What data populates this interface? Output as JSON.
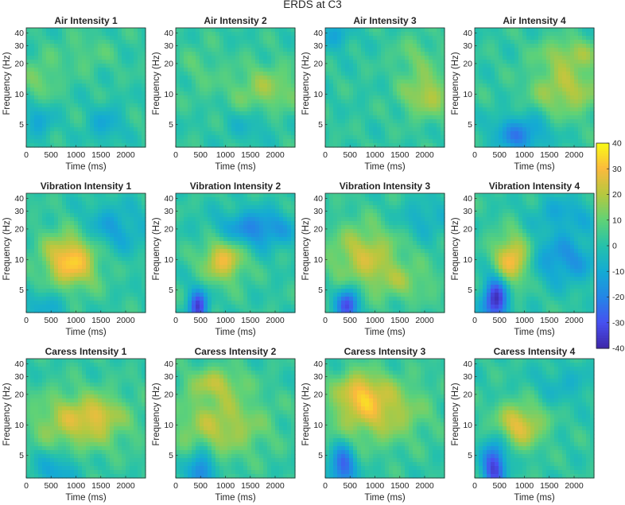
{
  "chart_data": {
    "title": "ERDS at C3",
    "type": "heatmap",
    "shared_axes": {
      "xlabel": "Time (ms)",
      "ylabel": "Frequency (Hz)",
      "xticks": [
        "0",
        "500",
        "1000",
        "1500",
        "2000"
      ],
      "xtick_values": [
        0,
        500,
        1000,
        1500,
        2000
      ],
      "xlim": [
        0,
        2400
      ],
      "yticks": [
        "5",
        "10",
        "20",
        "30",
        "40"
      ],
      "ytick_values": [
        5,
        10,
        20,
        30,
        40
      ],
      "ylim": [
        3,
        45
      ],
      "yscale": "log"
    },
    "colorbar": {
      "ticks": [
        "40",
        "30",
        "20",
        "10",
        "0",
        "-10",
        "-20",
        "-30",
        "-40"
      ],
      "tick_values": [
        40,
        30,
        20,
        10,
        0,
        -10,
        -20,
        -30,
        -40
      ],
      "range": [
        -40,
        40
      ],
      "colormap": "parula",
      "placement": "right"
    },
    "panels": [
      {
        "title": "Air Intensity 1",
        "blobs": [
          {
            "t": 300,
            "f": 14,
            "value": 10,
            "dt": 250,
            "df": 0.35
          },
          {
            "t": 250,
            "f": 5.5,
            "value": -12,
            "dt": 220,
            "df": 0.3
          },
          {
            "t": 1600,
            "f": 5,
            "value": -12,
            "dt": 250,
            "df": 0.3
          },
          {
            "t": 1200,
            "f": 25,
            "value": 6,
            "dt": 400,
            "df": 0.3
          }
        ]
      },
      {
        "title": "Air Intensity 2",
        "blobs": [
          {
            "t": 1800,
            "f": 11,
            "value": 14,
            "dt": 500,
            "df": 0.4
          },
          {
            "t": 1500,
            "f": 5,
            "value": -8,
            "dt": 350,
            "df": 0.3
          },
          {
            "t": 500,
            "f": 18,
            "value": 5,
            "dt": 300,
            "df": 0.4
          }
        ]
      },
      {
        "title": "Air Intensity 3",
        "blobs": [
          {
            "t": 2050,
            "f": 10,
            "value": 18,
            "dt": 350,
            "df": 0.35
          },
          {
            "t": 200,
            "f": 38,
            "value": -12,
            "dt": 250,
            "df": 0.25
          },
          {
            "t": 1800,
            "f": 24,
            "value": 8,
            "dt": 300,
            "df": 0.3
          }
        ]
      },
      {
        "title": "Air Intensity 4",
        "blobs": [
          {
            "t": 1850,
            "f": 11,
            "value": 18,
            "dt": 500,
            "df": 0.4
          },
          {
            "t": 1900,
            "f": 25,
            "value": 14,
            "dt": 450,
            "df": 0.25
          },
          {
            "t": 900,
            "f": 4,
            "value": -22,
            "dt": 380,
            "df": 0.3
          }
        ]
      },
      {
        "title": "Vibration Intensity 1",
        "blobs": [
          {
            "t": 900,
            "f": 10,
            "value": 32,
            "dt": 380,
            "df": 0.45
          },
          {
            "t": 1700,
            "f": 20,
            "value": -14,
            "dt": 500,
            "df": 0.4
          },
          {
            "t": 400,
            "f": 3.5,
            "value": -10,
            "dt": 350,
            "df": 0.3
          }
        ]
      },
      {
        "title": "Vibration Intensity 2",
        "blobs": [
          {
            "t": 950,
            "f": 10,
            "value": 26,
            "dt": 300,
            "df": 0.35
          },
          {
            "t": 1600,
            "f": 20,
            "value": -22,
            "dt": 550,
            "df": 0.3
          },
          {
            "t": 450,
            "f": 3.4,
            "value": -35,
            "dt": 140,
            "df": 0.3
          }
        ]
      },
      {
        "title": "Vibration Intensity 3",
        "blobs": [
          {
            "t": 800,
            "f": 11,
            "value": 20,
            "dt": 500,
            "df": 0.5
          },
          {
            "t": 1600,
            "f": 6,
            "value": 10,
            "dt": 500,
            "df": 0.3
          },
          {
            "t": 450,
            "f": 3.5,
            "value": -34,
            "dt": 160,
            "df": 0.3
          },
          {
            "t": 2000,
            "f": 25,
            "value": -10,
            "dt": 400,
            "df": 0.3
          }
        ]
      },
      {
        "title": "Vibration Intensity 4",
        "blobs": [
          {
            "t": 750,
            "f": 10,
            "value": 30,
            "dt": 250,
            "df": 0.4
          },
          {
            "t": 420,
            "f": 4,
            "value": -40,
            "dt": 180,
            "df": 0.38
          },
          {
            "t": 1800,
            "f": 10,
            "value": -18,
            "dt": 500,
            "df": 0.4
          },
          {
            "t": 1800,
            "f": 28,
            "value": -12,
            "dt": 450,
            "df": 0.3
          }
        ]
      },
      {
        "title": "Caress Intensity 1",
        "blobs": [
          {
            "t": 1100,
            "f": 11,
            "value": 22,
            "dt": 650,
            "df": 0.45
          },
          {
            "t": 1500,
            "f": 13,
            "value": 8,
            "dt": 200,
            "df": 0.2
          },
          {
            "t": 600,
            "f": 3.5,
            "value": -14,
            "dt": 300,
            "df": 0.3
          }
        ]
      },
      {
        "title": "Caress Intensity 2",
        "blobs": [
          {
            "t": 900,
            "f": 10,
            "value": 18,
            "dt": 650,
            "df": 0.5
          },
          {
            "t": 500,
            "f": 3.6,
            "value": -26,
            "dt": 180,
            "df": 0.3
          },
          {
            "t": 800,
            "f": 26,
            "value": 16,
            "dt": 400,
            "df": 0.25
          }
        ]
      },
      {
        "title": "Caress Intensity 3",
        "blobs": [
          {
            "t": 1000,
            "f": 14,
            "value": 22,
            "dt": 650,
            "df": 0.5
          },
          {
            "t": 700,
            "f": 22,
            "value": 16,
            "dt": 300,
            "df": 0.3
          },
          {
            "t": 350,
            "f": 3.8,
            "value": -30,
            "dt": 180,
            "df": 0.35
          }
        ]
      },
      {
        "title": "Caress Intensity 4",
        "blobs": [
          {
            "t": 900,
            "f": 10,
            "value": 24,
            "dt": 350,
            "df": 0.35
          },
          {
            "t": 400,
            "f": 4,
            "value": -36,
            "dt": 170,
            "df": 0.4
          },
          {
            "t": 1800,
            "f": 25,
            "value": -8,
            "dt": 450,
            "df": 0.3
          }
        ]
      }
    ]
  }
}
